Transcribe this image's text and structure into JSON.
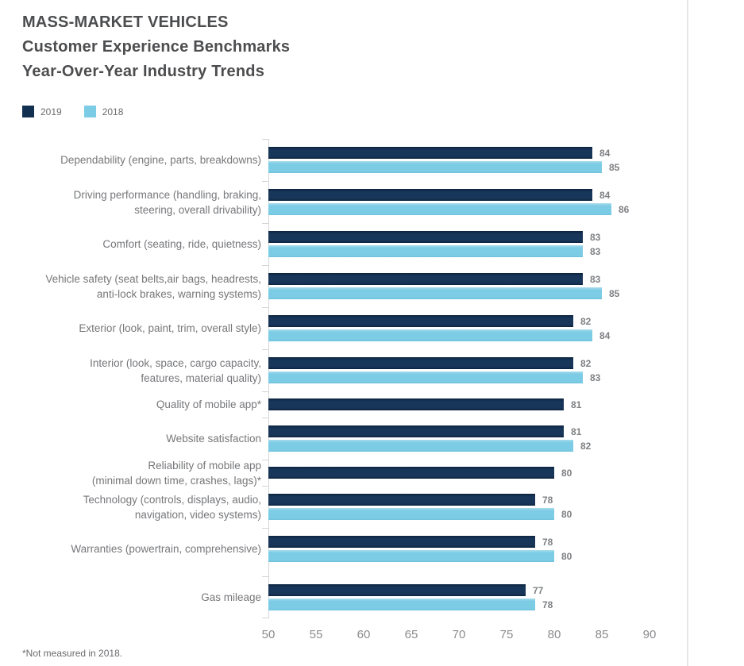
{
  "chart_data": {
    "type": "bar",
    "orientation": "horizontal",
    "title": "MASS-MARKET VEHICLES Customer Experience Benchmarks Year-Over-Year Industry Trends",
    "title_lines": [
      "MASS-MARKET VEHICLES",
      "Customer Experience Benchmarks",
      "Year-Over-Year Industry Trends"
    ],
    "categories": [
      "Dependability (engine, parts, breakdowns)",
      "Driving performance (handling, braking,\nsteering, overall drivability)",
      "Comfort (seating, ride, quietness)",
      "Vehicle safety (seat belts,air bags, headrests,\nanti-lock brakes, warning systems)",
      "Exterior (look, paint, trim, overall style)",
      "Interior (look, space, cargo capacity,\nfeatures, material quality)",
      "Quality of mobile app*",
      "Website satisfaction",
      "Reliability of mobile app\n(minimal down time, crashes, lags)*",
      "Technology (controls, displays, audio,\nnavigation, video systems)",
      "Warranties (powertrain, comprehensive)",
      "Gas mileage"
    ],
    "series": [
      {
        "name": "2019",
        "color": "#12304f",
        "values": [
          84,
          84,
          83,
          83,
          82,
          82,
          81,
          81,
          80,
          78,
          78,
          77
        ]
      },
      {
        "name": "2018",
        "color": "#7dcce5",
        "values": [
          85,
          86,
          83,
          85,
          84,
          83,
          null,
          82,
          null,
          80,
          80,
          78
        ]
      }
    ],
    "xlim": [
      50,
      90
    ],
    "xticks": [
      50,
      55,
      60,
      65,
      70,
      75,
      80,
      85,
      90
    ],
    "grid": "off",
    "legend_position": "top-left",
    "footnote": "*Not measured in 2018."
  }
}
